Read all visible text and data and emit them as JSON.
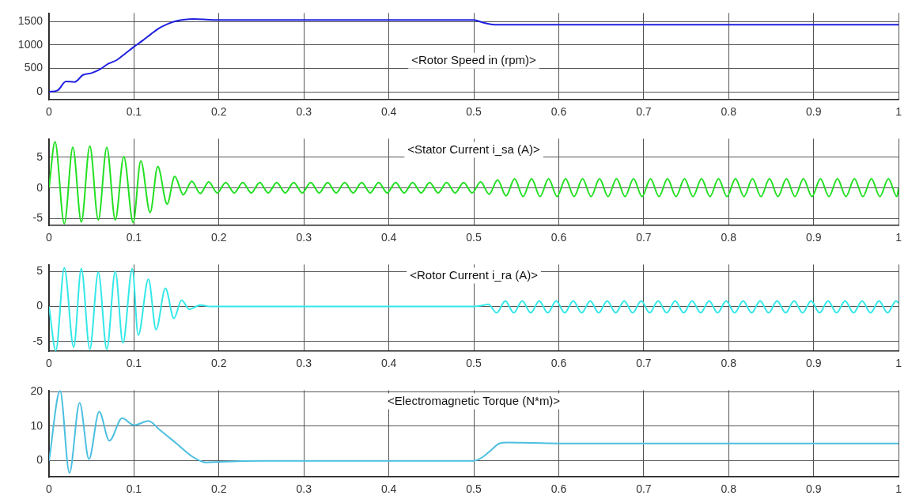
{
  "chart_data": [
    {
      "type": "line",
      "title": "<Rotor Speed in (rpm)>",
      "xlim": [
        0,
        1
      ],
      "xticks": [
        0,
        0.1,
        0.2,
        0.3,
        0.4,
        0.5,
        0.6,
        0.7,
        0.8,
        0.9,
        1
      ],
      "ylim": [
        -170,
        1680
      ],
      "yticks": [
        0,
        500,
        1000,
        1500
      ],
      "grid": true,
      "marker": "none",
      "line_style": "solid",
      "x": [
        0,
        0.01,
        0.02,
        0.03,
        0.04,
        0.05,
        0.06,
        0.07,
        0.08,
        0.09,
        0.1,
        0.11,
        0.12,
        0.13,
        0.14,
        0.15,
        0.16,
        0.17,
        0.2,
        0.5,
        0.51,
        0.52,
        0.53,
        0.6,
        1
      ],
      "series": [
        {
          "color": "#2020e0",
          "values": [
            0,
            30,
            220,
            210,
            360,
            400,
            480,
            600,
            680,
            820,
            960,
            1090,
            1230,
            1360,
            1450,
            1510,
            1540,
            1550,
            1530,
            1530,
            1480,
            1440,
            1430,
            1430,
            1430
          ]
        }
      ]
    },
    {
      "type": "line",
      "title": "<Stator Current i_sa (A)>",
      "xlim": [
        0,
        1
      ],
      "xticks": [
        0,
        0.1,
        0.2,
        0.3,
        0.4,
        0.5,
        0.6,
        0.7,
        0.8,
        0.9,
        1
      ],
      "ylim": [
        -6.1,
        8
      ],
      "yticks": [
        -5,
        0,
        5
      ],
      "grid": true,
      "marker": "none",
      "line_style": "solid",
      "x": [
        0,
        0.007,
        0.018,
        0.028,
        0.038,
        0.048,
        0.058,
        0.068,
        0.078,
        0.088,
        0.099,
        0.108,
        0.119,
        0.128,
        0.139,
        0.148,
        0.158,
        0.168,
        0.178,
        0.188,
        0.198,
        0.208,
        0.218,
        0.228,
        0.238,
        0.248,
        0.258,
        0.268,
        0.278,
        0.288,
        0.298,
        0.308,
        0.318,
        0.328,
        0.338,
        0.348,
        0.358,
        0.368,
        0.378,
        0.388,
        0.398,
        0.408,
        0.418,
        0.428,
        0.438,
        0.448,
        0.458,
        0.468,
        0.478,
        0.488,
        0.498,
        0.508,
        0.518,
        0.528,
        0.538,
        0.548,
        0.558,
        0.568,
        0.578,
        0.588,
        0.598,
        0.608,
        0.618,
        0.628,
        0.638,
        0.648,
        0.658,
        0.668,
        0.678,
        0.688,
        0.698,
        0.708,
        0.718,
        0.728,
        0.738,
        0.748,
        0.758,
        0.768,
        0.778,
        0.788,
        0.798,
        0.808,
        0.818,
        0.828,
        0.838,
        0.848,
        0.858,
        0.868,
        0.878,
        0.888,
        0.898,
        0.908,
        0.918,
        0.928,
        0.938,
        0.948,
        0.958,
        0.968,
        0.978,
        0.988,
        0.998,
        1
      ],
      "series": [
        {
          "color": "#22e022",
          "values": [
            0,
            7.5,
            -5.8,
            6.6,
            -5.5,
            6.8,
            -5.2,
            6.6,
            -5.2,
            5.1,
            -5.6,
            4.4,
            -4.0,
            3.5,
            -2.6,
            1.9,
            -1.1,
            1.1,
            -0.9,
            1.0,
            -0.8,
            0.9,
            -0.8,
            0.9,
            -0.8,
            0.9,
            -0.8,
            0.9,
            -0.8,
            0.9,
            -0.8,
            0.9,
            -0.8,
            0.9,
            -0.8,
            0.9,
            -0.8,
            0.9,
            -0.8,
            0.9,
            -0.8,
            0.9,
            -0.8,
            0.9,
            -0.8,
            0.9,
            -0.8,
            0.9,
            -0.8,
            0.9,
            -0.8,
            1.0,
            -1.0,
            1.3,
            -1.3,
            1.5,
            -1.4,
            1.5,
            -1.4,
            1.5,
            -1.4,
            1.5,
            -1.4,
            1.5,
            -1.4,
            1.5,
            -1.4,
            1.5,
            -1.4,
            1.5,
            -1.4,
            1.5,
            -1.4,
            1.5,
            -1.4,
            1.5,
            -1.4,
            1.5,
            -1.4,
            1.5,
            -1.4,
            1.5,
            -1.4,
            1.5,
            -1.4,
            1.5,
            -1.4,
            1.5,
            -1.4,
            1.5,
            -1.4,
            1.5,
            -1.4,
            1.5,
            -1.4,
            1.5,
            -1.4,
            1.5,
            -1.4,
            1.5,
            -1.4,
            0
          ]
        }
      ]
    },
    {
      "type": "line",
      "title": "<Rotor Current i_ra (A)>",
      "xlim": [
        0,
        1
      ],
      "xticks": [
        0,
        0.1,
        0.2,
        0.3,
        0.4,
        0.5,
        0.6,
        0.7,
        0.8,
        0.9,
        1
      ],
      "ylim": [
        -6.4,
        6
      ],
      "yticks": [
        -5,
        0,
        5
      ],
      "grid": true,
      "marker": "none",
      "line_style": "solid",
      "x": [
        0,
        0.008,
        0.018,
        0.029,
        0.038,
        0.048,
        0.058,
        0.068,
        0.078,
        0.087,
        0.098,
        0.105,
        0.117,
        0.126,
        0.137,
        0.147,
        0.156,
        0.165,
        0.178,
        0.19,
        0.5,
        0.512,
        0.517,
        0.527,
        0.537,
        0.547,
        0.557,
        0.567,
        0.577,
        0.587,
        0.597,
        0.607,
        0.617,
        0.627,
        0.637,
        0.647,
        0.657,
        0.667,
        0.677,
        0.687,
        0.697,
        0.707,
        0.717,
        0.727,
        0.737,
        0.747,
        0.757,
        0.767,
        0.777,
        0.787,
        0.797,
        0.807,
        0.817,
        0.827,
        0.837,
        0.847,
        0.857,
        0.867,
        0.877,
        0.887,
        0.897,
        0.907,
        0.917,
        0.927,
        0.937,
        0.947,
        0.957,
        0.967,
        0.977,
        0.987,
        0.997,
        1
      ],
      "series": [
        {
          "color": "#33e8e8",
          "values": [
            0,
            -6.3,
            5.5,
            -5.8,
            5.4,
            -6.1,
            4.9,
            -6.1,
            5.0,
            -5.2,
            5.4,
            -4.1,
            3.9,
            -3.3,
            2.6,
            -1.7,
            0.9,
            -0.4,
            0.2,
            0,
            0,
            0.2,
            0.3,
            -0.9,
            0.8,
            -0.9,
            0.8,
            -0.9,
            0.8,
            -0.9,
            0.8,
            -0.9,
            0.8,
            -0.9,
            0.8,
            -0.9,
            0.8,
            -0.9,
            0.8,
            -0.9,
            0.8,
            -0.9,
            0.8,
            -0.9,
            0.8,
            -0.9,
            0.8,
            -0.9,
            0.8,
            -0.9,
            0.8,
            -0.9,
            0.8,
            -0.9,
            0.8,
            -0.9,
            0.8,
            -0.9,
            0.8,
            -0.9,
            0.8,
            -0.9,
            0.8,
            -0.9,
            0.8,
            -0.9,
            0.8,
            -0.9,
            0.8,
            -0.9,
            0.8,
            0.5
          ]
        }
      ]
    },
    {
      "type": "line",
      "title": "<Electromagnetic Torque (N*m)>",
      "xlim": [
        0,
        1
      ],
      "xticks": [
        0,
        0.1,
        0.2,
        0.3,
        0.4,
        0.5,
        0.6,
        0.7,
        0.8,
        0.9,
        1
      ],
      "ylim": [
        -4.7,
        20.4
      ],
      "yticks": [
        0,
        10,
        20
      ],
      "grid": true,
      "marker": "none",
      "line_style": "solid",
      "x": [
        0,
        0.013,
        0.024,
        0.036,
        0.047,
        0.059,
        0.071,
        0.086,
        0.1,
        0.117,
        0.13,
        0.15,
        0.17,
        0.185,
        0.2,
        0.25,
        0.5,
        0.51,
        0.52,
        0.53,
        0.54,
        0.6,
        1
      ],
      "series": [
        {
          "color": "#4dbfe0",
          "values": [
            0,
            20.2,
            -3.5,
            16.8,
            0.5,
            14.2,
            5.8,
            12.3,
            10.3,
            11.5,
            9,
            5,
            1,
            -0.5,
            -0.3,
            0,
            0,
            1,
            3,
            5,
            5.3,
            5,
            5
          ]
        }
      ]
    }
  ]
}
